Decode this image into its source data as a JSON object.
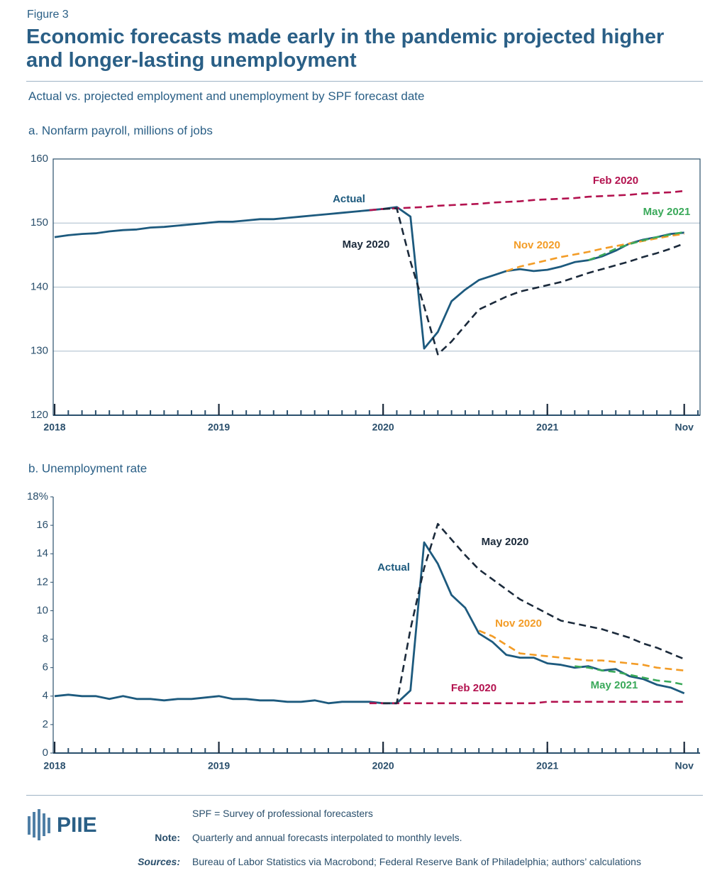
{
  "header": {
    "figure": "Figure 3",
    "title": "Economic forecasts made early in the pandemic projected higher and longer-lasting unemployment",
    "subtitle": "Actual vs. projected employment and unemployment by SPF forecast date"
  },
  "chart_data": [
    {
      "type": "line",
      "title": "a. Nonfarm payroll, millions of jobs",
      "grid": true,
      "x": [
        "2018-01",
        "2018-02",
        "2018-03",
        "2018-04",
        "2018-05",
        "2018-06",
        "2018-07",
        "2018-08",
        "2018-09",
        "2018-10",
        "2018-11",
        "2018-12",
        "2019-01",
        "2019-02",
        "2019-03",
        "2019-04",
        "2019-05",
        "2019-06",
        "2019-07",
        "2019-08",
        "2019-09",
        "2019-10",
        "2019-11",
        "2019-12",
        "2020-01",
        "2020-02",
        "2020-03",
        "2020-04",
        "2020-05",
        "2020-06",
        "2020-07",
        "2020-08",
        "2020-09",
        "2020-10",
        "2020-11",
        "2020-12",
        "2021-01",
        "2021-02",
        "2021-03",
        "2021-04",
        "2021-05",
        "2021-06",
        "2021-07",
        "2021-08",
        "2021-09",
        "2021-10",
        "2021-11"
      ],
      "xlim": [
        "2018-01",
        "2021-12"
      ],
      "xticks": [
        {
          "value": "2018-01",
          "label": "2018"
        },
        {
          "value": "2019-01",
          "label": "2019"
        },
        {
          "value": "2020-01",
          "label": "2020"
        },
        {
          "value": "2021-01",
          "label": "2021"
        },
        {
          "value": "2021-11",
          "label": "Nov"
        }
      ],
      "ylim": [
        120,
        160
      ],
      "yticks": [
        120,
        130,
        140,
        150,
        160
      ],
      "series": [
        {
          "name": "Actual",
          "color": "#1d5a7e",
          "dashed": false,
          "values": [
            147.8,
            148.1,
            148.3,
            148.4,
            148.7,
            148.9,
            149.0,
            149.3,
            149.4,
            149.6,
            149.8,
            150.0,
            150.2,
            150.2,
            150.4,
            150.6,
            150.6,
            150.8,
            151.0,
            151.2,
            151.4,
            151.6,
            151.8,
            152.0,
            152.2,
            152.5,
            151.0,
            130.4,
            133.0,
            137.8,
            139.6,
            141.1,
            141.8,
            142.5,
            142.8,
            142.5,
            142.7,
            143.2,
            143.9,
            144.2,
            144.8,
            145.7,
            146.8,
            147.4,
            147.8,
            148.3,
            148.5
          ]
        },
        {
          "name": "Feb 2020",
          "color": "#b3124f",
          "dashed": true,
          "values": [
            null,
            null,
            null,
            null,
            null,
            null,
            null,
            null,
            null,
            null,
            null,
            null,
            null,
            null,
            null,
            null,
            null,
            null,
            null,
            null,
            null,
            null,
            null,
            152.0,
            152.2,
            152.3,
            152.4,
            152.5,
            152.7,
            152.8,
            152.9,
            153.0,
            153.2,
            153.3,
            153.4,
            153.6,
            153.7,
            153.8,
            153.9,
            154.1,
            154.2,
            154.3,
            154.4,
            154.6,
            154.7,
            154.8,
            155.0
          ]
        },
        {
          "name": "May 2020",
          "color": "#1b2a3b",
          "dashed": true,
          "values": [
            null,
            null,
            null,
            null,
            null,
            null,
            null,
            null,
            null,
            null,
            null,
            null,
            null,
            null,
            null,
            null,
            null,
            null,
            null,
            null,
            null,
            null,
            null,
            null,
            152.2,
            152.3,
            144.0,
            137.0,
            129.5,
            131.5,
            134.0,
            136.5,
            137.5,
            138.5,
            139.3,
            139.8,
            140.3,
            140.8,
            141.5,
            142.2,
            142.8,
            143.4,
            144.0,
            144.7,
            145.3,
            146.0,
            146.8
          ]
        },
        {
          "name": "Nov 2020",
          "color": "#f39c26",
          "dashed": true,
          "values": [
            null,
            null,
            null,
            null,
            null,
            null,
            null,
            null,
            null,
            null,
            null,
            null,
            null,
            null,
            null,
            null,
            null,
            null,
            null,
            null,
            null,
            null,
            null,
            null,
            null,
            null,
            null,
            null,
            null,
            null,
            null,
            null,
            null,
            142.5,
            143.2,
            143.7,
            144.2,
            144.7,
            145.1,
            145.5,
            146.0,
            146.4,
            146.8,
            147.2,
            147.6,
            148.0,
            148.3
          ]
        },
        {
          "name": "May 2021",
          "color": "#3aa95a",
          "dashed": true,
          "values": [
            null,
            null,
            null,
            null,
            null,
            null,
            null,
            null,
            null,
            null,
            null,
            null,
            null,
            null,
            null,
            null,
            null,
            null,
            null,
            null,
            null,
            null,
            null,
            null,
            null,
            null,
            null,
            null,
            null,
            null,
            null,
            null,
            null,
            null,
            null,
            null,
            null,
            null,
            null,
            144.2,
            145.0,
            146.0,
            146.7,
            147.3,
            147.8,
            148.2,
            148.6
          ]
        }
      ]
    },
    {
      "type": "line",
      "title": "b. Unemployment rate",
      "grid": false,
      "x": [
        "2018-01",
        "2018-02",
        "2018-03",
        "2018-04",
        "2018-05",
        "2018-06",
        "2018-07",
        "2018-08",
        "2018-09",
        "2018-10",
        "2018-11",
        "2018-12",
        "2019-01",
        "2019-02",
        "2019-03",
        "2019-04",
        "2019-05",
        "2019-06",
        "2019-07",
        "2019-08",
        "2019-09",
        "2019-10",
        "2019-11",
        "2019-12",
        "2020-01",
        "2020-02",
        "2020-03",
        "2020-04",
        "2020-05",
        "2020-06",
        "2020-07",
        "2020-08",
        "2020-09",
        "2020-10",
        "2020-11",
        "2020-12",
        "2021-01",
        "2021-02",
        "2021-03",
        "2021-04",
        "2021-05",
        "2021-06",
        "2021-07",
        "2021-08",
        "2021-09",
        "2021-10",
        "2021-11"
      ],
      "xlim": [
        "2018-01",
        "2021-12"
      ],
      "xticks": [
        {
          "value": "2018-01",
          "label": "2018"
        },
        {
          "value": "2019-01",
          "label": "2019"
        },
        {
          "value": "2020-01",
          "label": "2020"
        },
        {
          "value": "2021-01",
          "label": "2021"
        },
        {
          "value": "2021-11",
          "label": "Nov"
        }
      ],
      "ylim": [
        0,
        18
      ],
      "yticks": [
        0,
        2,
        4,
        6,
        8,
        10,
        12,
        14,
        16,
        {
          "value": 18,
          "label": "18%"
        }
      ],
      "series": [
        {
          "name": "Actual",
          "color": "#1d5a7e",
          "dashed": false,
          "values": [
            4.0,
            4.1,
            4.0,
            4.0,
            3.8,
            4.0,
            3.8,
            3.8,
            3.7,
            3.8,
            3.8,
            3.9,
            4.0,
            3.8,
            3.8,
            3.7,
            3.7,
            3.6,
            3.6,
            3.7,
            3.5,
            3.6,
            3.6,
            3.6,
            3.5,
            3.5,
            4.4,
            14.8,
            13.3,
            11.1,
            10.2,
            8.4,
            7.8,
            6.9,
            6.7,
            6.7,
            6.3,
            6.2,
            6.0,
            6.1,
            5.8,
            5.9,
            5.4,
            5.2,
            4.8,
            4.6,
            4.2
          ]
        },
        {
          "name": "Feb 2020",
          "color": "#b3124f",
          "dashed": true,
          "values": [
            null,
            null,
            null,
            null,
            null,
            null,
            null,
            null,
            null,
            null,
            null,
            null,
            null,
            null,
            null,
            null,
            null,
            null,
            null,
            null,
            null,
            null,
            null,
            3.5,
            3.5,
            3.5,
            3.5,
            3.5,
            3.5,
            3.5,
            3.5,
            3.5,
            3.5,
            3.5,
            3.5,
            3.5,
            3.6,
            3.6,
            3.6,
            3.6,
            3.6,
            3.6,
            3.6,
            3.6,
            3.6,
            3.6,
            3.6
          ]
        },
        {
          "name": "May 2020",
          "color": "#1b2a3b",
          "dashed": true,
          "values": [
            null,
            null,
            null,
            null,
            null,
            null,
            null,
            null,
            null,
            null,
            null,
            null,
            null,
            null,
            null,
            null,
            null,
            null,
            null,
            null,
            null,
            null,
            null,
            null,
            3.5,
            3.5,
            8.7,
            13.0,
            16.1,
            15.0,
            13.9,
            12.9,
            12.2,
            11.5,
            10.8,
            10.3,
            9.8,
            9.3,
            9.1,
            8.9,
            8.7,
            8.4,
            8.1,
            7.7,
            7.4,
            7.0,
            6.6
          ]
        },
        {
          "name": "Nov 2020",
          "color": "#f39c26",
          "dashed": true,
          "values": [
            null,
            null,
            null,
            null,
            null,
            null,
            null,
            null,
            null,
            null,
            null,
            null,
            null,
            null,
            null,
            null,
            null,
            null,
            null,
            null,
            null,
            null,
            null,
            null,
            null,
            null,
            null,
            null,
            null,
            null,
            null,
            8.6,
            8.2,
            7.6,
            7.0,
            6.9,
            6.8,
            6.7,
            6.6,
            6.5,
            6.5,
            6.4,
            6.3,
            6.2,
            6.0,
            5.9,
            5.8
          ]
        },
        {
          "name": "May 2021",
          "color": "#3aa95a",
          "dashed": true,
          "values": [
            null,
            null,
            null,
            null,
            null,
            null,
            null,
            null,
            null,
            null,
            null,
            null,
            null,
            null,
            null,
            null,
            null,
            null,
            null,
            null,
            null,
            null,
            null,
            null,
            null,
            null,
            null,
            null,
            null,
            null,
            null,
            null,
            null,
            null,
            null,
            null,
            null,
            null,
            6.1,
            6.0,
            5.8,
            5.7,
            5.5,
            5.3,
            5.1,
            5.0,
            4.8
          ]
        }
      ]
    }
  ],
  "footer": {
    "logo": "PIIE",
    "abbreviation": "SPF = Survey of professional forecasters",
    "note_label": "Note:",
    "note": "Quarterly and annual forecasts interpolated to monthly levels.",
    "sources_label": "Sources:",
    "sources": "Bureau of Labor Statistics via Macrobond; Federal Reserve Bank of Philadelphia; authors’ calculations"
  }
}
